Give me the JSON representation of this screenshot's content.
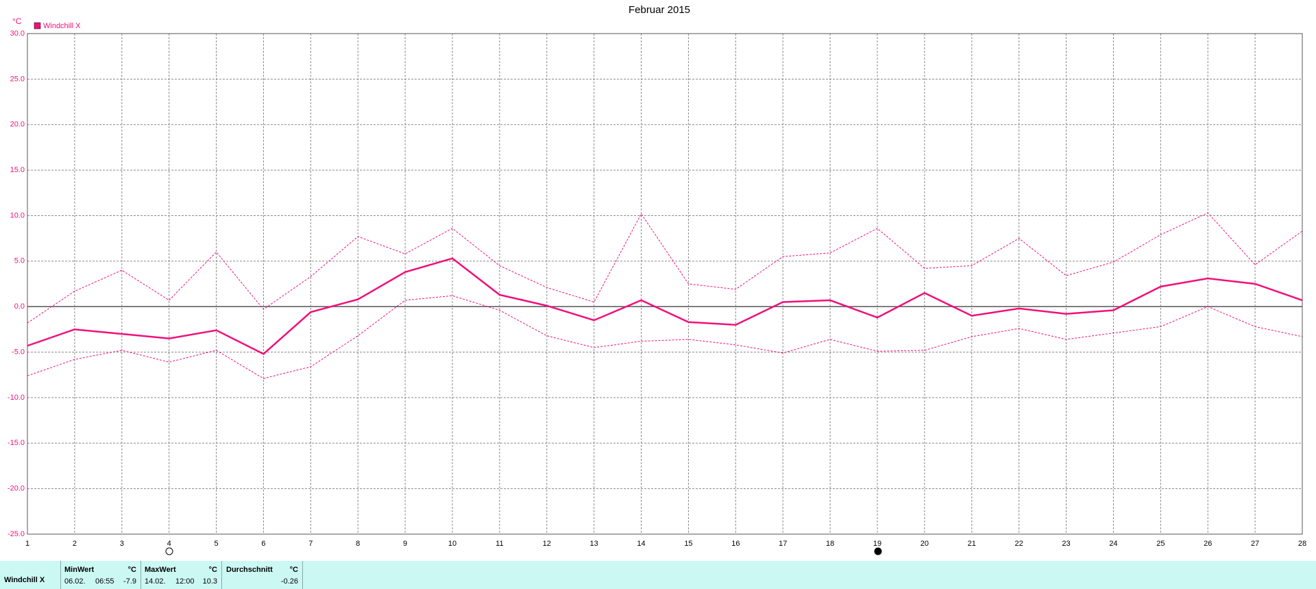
{
  "chart_data": {
    "type": "line",
    "title": "Februar 2015",
    "ylabel": "°C",
    "x": [
      1,
      2,
      3,
      4,
      5,
      6,
      7,
      8,
      9,
      10,
      11,
      12,
      13,
      14,
      15,
      16,
      17,
      18,
      19,
      20,
      21,
      22,
      23,
      24,
      25,
      26,
      27,
      28
    ],
    "xlim": [
      1,
      28
    ],
    "xticks": [
      1,
      2,
      3,
      4,
      5,
      6,
      7,
      8,
      9,
      10,
      11,
      12,
      13,
      14,
      15,
      16,
      17,
      18,
      19,
      20,
      21,
      22,
      23,
      24,
      25,
      26,
      27,
      28
    ],
    "ylim": [
      -25,
      30
    ],
    "yticks": [
      {
        "value": -25,
        "label": "-25.0"
      },
      {
        "value": -20,
        "label": "-20.0"
      },
      {
        "value": -15,
        "label": "-15.0"
      },
      {
        "value": -10,
        "label": "-10.0"
      },
      {
        "value": -5,
        "label": "-5.0"
      },
      {
        "value": 0,
        "label": "0.0"
      },
      {
        "value": 5,
        "label": "5.0"
      },
      {
        "value": 10,
        "label": "10.0"
      },
      {
        "value": 15,
        "label": "15.0"
      },
      {
        "value": 20,
        "label": "20.0"
      },
      {
        "value": 25,
        "label": "25.0"
      },
      {
        "value": 30,
        "label": "30.0"
      }
    ],
    "grid": true,
    "legend": "top-left",
    "series": [
      {
        "name": "Windchill X",
        "color": "#f0107a",
        "style": "solid",
        "values": [
          -4.3,
          -2.5,
          -3.0,
          -3.5,
          -2.6,
          -5.2,
          -0.6,
          0.8,
          3.8,
          5.3,
          1.3,
          0.1,
          -1.5,
          0.7,
          -1.7,
          -2.0,
          0.5,
          0.7,
          -1.2,
          1.5,
          -1.0,
          -0.2,
          -0.8,
          -0.4,
          2.2,
          3.1,
          2.5,
          0.7
        ]
      },
      {
        "color": "#f0107a",
        "style": "dashed",
        "values": [
          -1.8,
          1.7,
          4.0,
          0.7,
          6.0,
          -0.3,
          3.3,
          7.7,
          5.8,
          8.6,
          4.5,
          2.1,
          0.5,
          10.2,
          2.5,
          1.9,
          5.5,
          5.9,
          8.6,
          4.2,
          4.5,
          7.5,
          3.4,
          4.9,
          7.9,
          10.3,
          4.6,
          8.3
        ]
      },
      {
        "color": "#f0107a",
        "style": "dashed",
        "values": [
          -7.6,
          -5.8,
          -4.8,
          -6.1,
          -4.8,
          -7.9,
          -6.6,
          -3.2,
          0.7,
          1.2,
          -0.4,
          -3.2,
          -4.5,
          -3.8,
          -3.6,
          -4.2,
          -5.1,
          -3.6,
          -4.9,
          -4.8,
          -3.3,
          -2.4,
          -3.6,
          -2.9,
          -2.2,
          0.0,
          -2.2,
          -3.3
        ]
      }
    ]
  },
  "summary": {
    "row_label": "Windchill X",
    "columns": [
      {
        "header": "MinWert",
        "unit": "°C",
        "date": "06.02.",
        "time": "06:55",
        "value": -7.9
      },
      {
        "header": "MaxWert",
        "unit": "°C",
        "date": "14.02.",
        "time": "12:00",
        "value": 10.3
      },
      {
        "header": "Durchschnitt",
        "unit": "°C",
        "value": -0.26
      }
    ]
  }
}
